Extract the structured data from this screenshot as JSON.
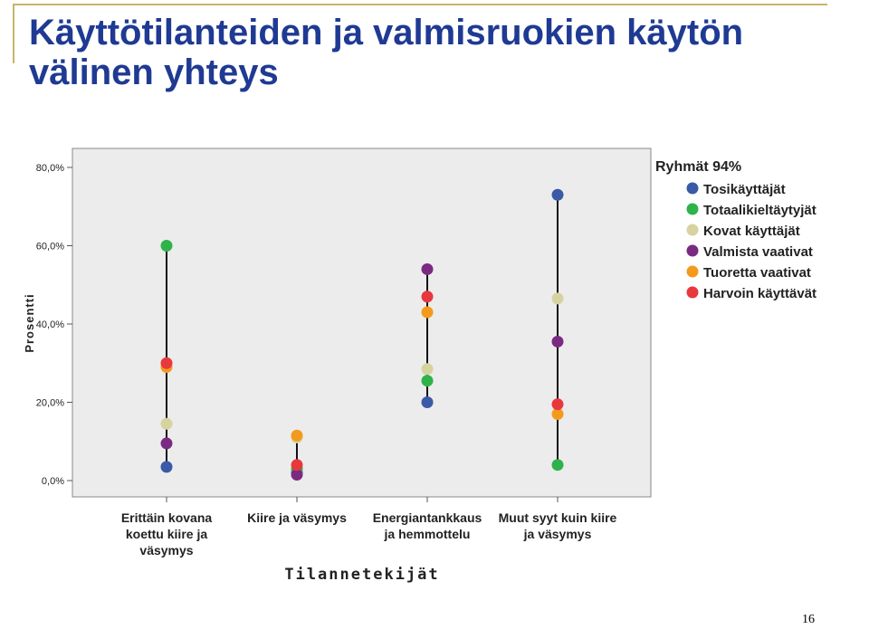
{
  "slide": {
    "title_line1": "Käyttötilanteiden ja valmisruokien käytön",
    "title_line2": "välinen yhteys",
    "page_number": "16"
  },
  "chart_data": {
    "type": "scatter",
    "title": "",
    "xlabel": "Tilannetekijät",
    "ylabel": "Prosentti",
    "ylim": [
      0,
      80
    ],
    "yticks": [
      "0,0%",
      "20,0%",
      "40,0%",
      "60,0%",
      "80,0%"
    ],
    "ytick_values": [
      0,
      20,
      40,
      60,
      80
    ],
    "categories": [
      [
        "Erittäin kovana",
        "koettu kiire ja",
        "väsymys"
      ],
      [
        "Kiire ja väsymys"
      ],
      [
        "Energiantankkaus",
        "ja hemmottelu"
      ],
      [
        "Muut syyt kuin kiire",
        "ja väsymys"
      ]
    ],
    "legend_title": "Ryhmät 94%",
    "legend_position": "right",
    "grid": false,
    "series": [
      {
        "name": "Tosikäyttäjät",
        "color": "#3a5aa8",
        "values": [
          3.5,
          2,
          20,
          73
        ]
      },
      {
        "name": "Totaalikieltäytyjät",
        "color": "#2fb24a",
        "values": [
          60,
          3,
          25.5,
          4
        ]
      },
      {
        "name": "Kovat käyttäjät",
        "color": "#d6d3a0",
        "values": [
          14.5,
          11,
          28.5,
          46.5
        ]
      },
      {
        "name": "Valmista vaativat",
        "color": "#7b2a82",
        "values": [
          9.5,
          1.5,
          54,
          35.5
        ]
      },
      {
        "name": "Tuoretta vaativat",
        "color": "#f39a1e",
        "values": [
          29,
          11.5,
          43,
          17
        ]
      },
      {
        "name": "Harvoin käyttävät",
        "color": "#e8383d",
        "values": [
          30,
          4,
          47,
          19.5
        ]
      }
    ]
  }
}
